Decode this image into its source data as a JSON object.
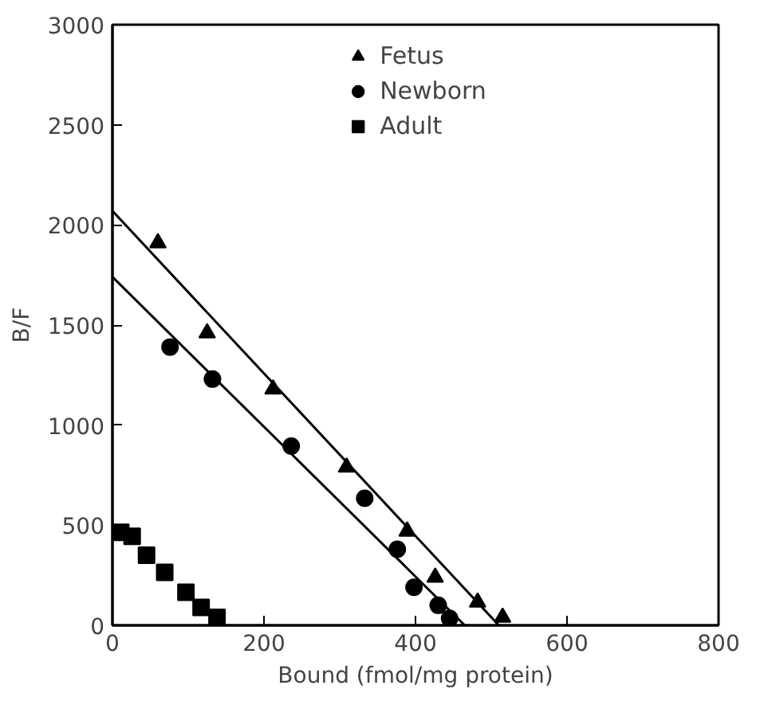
{
  "chart_data": {
    "type": "scatter",
    "xlabel": "Bound (fmol/mg protein)",
    "ylabel": "B/F",
    "xlim": [
      0,
      800
    ],
    "ylim": [
      0,
      3000
    ],
    "xticks": [
      0,
      200,
      400,
      600,
      800
    ],
    "yticks": [
      0,
      500,
      1000,
      1500,
      2000,
      2500,
      3000
    ],
    "grid": false,
    "legend": "top",
    "series": [
      {
        "name": "Fetus",
        "color": "#000000",
        "marker": "triangle",
        "x": [
          60,
          125,
          212,
          309,
          389,
          426,
          482,
          515
        ],
        "values": [
          1910,
          1460,
          1180,
          790,
          470,
          240,
          115,
          40
        ]
      },
      {
        "name": "Newborn",
        "color": "#000000",
        "marker": "circle",
        "x": [
          76,
          132,
          236,
          333,
          376,
          398,
          430,
          445
        ],
        "values": [
          1390,
          1230,
          895,
          635,
          380,
          190,
          100,
          35
        ]
      },
      {
        "name": "Adult",
        "color": "#000000",
        "marker": "square",
        "x": [
          11,
          26,
          45,
          69,
          97,
          117,
          138
        ],
        "values": [
          465,
          445,
          350,
          265,
          165,
          90,
          40
        ]
      },
      {
        "type": "line",
        "color": "#000000",
        "marker": "none",
        "x": [
          0,
          510
        ],
        "values": [
          2070,
          0
        ]
      },
      {
        "type": "line",
        "color": "#000000",
        "marker": "none",
        "x": [
          0,
          465
        ],
        "values": [
          1740,
          0
        ]
      }
    ]
  }
}
